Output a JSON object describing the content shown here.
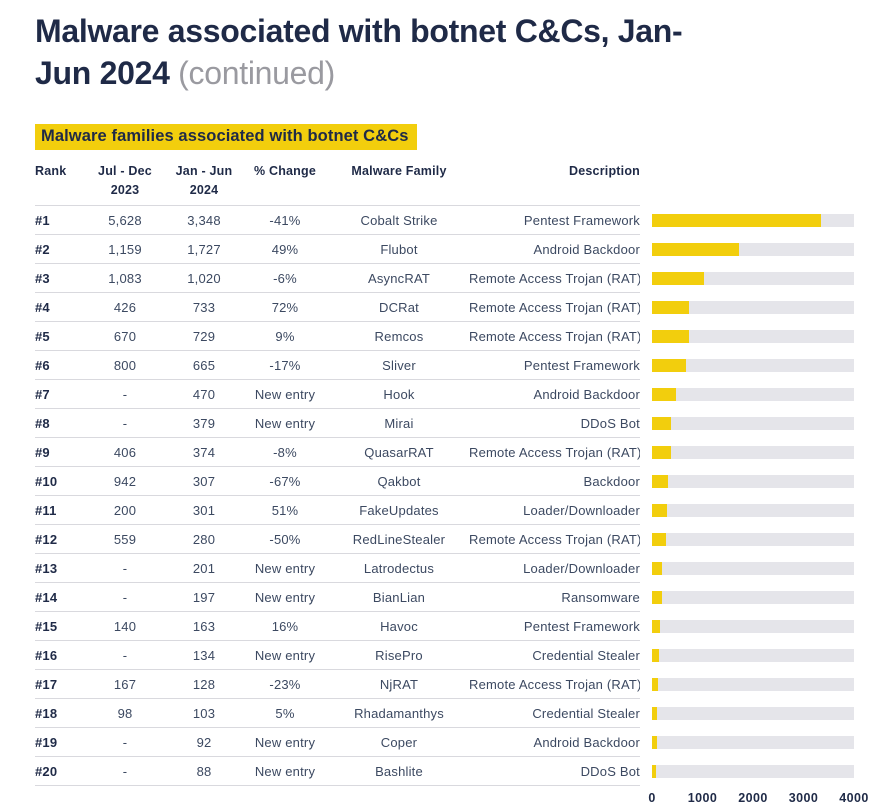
{
  "theme": {
    "accent": "#F2CE0D",
    "navy": "#1F2A47",
    "text": "#3C4961",
    "muted_gray": "#9A9AA0",
    "track": "#E5E5EA",
    "separator": "#D9D9DE"
  },
  "header": {
    "title": "Malware associated with botnet C&Cs, Jan-Jun 2024 ",
    "suffix": "(continued)"
  },
  "section": {
    "title": "Malware families associated with botnet C&Cs"
  },
  "table": {
    "headers": [
      "Rank",
      "Jul - Dec\n2023",
      "Jan - Jun\n2024",
      "% Change",
      "Malware Family",
      "Description"
    ],
    "rows": [
      {
        "rank": "#1",
        "jul_dec": "5,628",
        "jan_jun": "3,348",
        "change": "-41%",
        "family": "Cobalt Strike",
        "description": "Pentest Framework"
      },
      {
        "rank": "#2",
        "jul_dec": "1,159",
        "jan_jun": "1,727",
        "change": "49%",
        "family": "Flubot",
        "description": "Android Backdoor"
      },
      {
        "rank": "#3",
        "jul_dec": "1,083",
        "jan_jun": "1,020",
        "change": "-6%",
        "family": "AsyncRAT",
        "description": "Remote Access Trojan (RAT)"
      },
      {
        "rank": "#4",
        "jul_dec": "426",
        "jan_jun": "733",
        "change": "72%",
        "family": "DCRat",
        "description": "Remote Access Trojan (RAT)"
      },
      {
        "rank": "#5",
        "jul_dec": "670",
        "jan_jun": "729",
        "change": "9%",
        "family": "Remcos",
        "description": "Remote Access Trojan (RAT)"
      },
      {
        "rank": "#6",
        "jul_dec": "800",
        "jan_jun": "665",
        "change": "-17%",
        "family": "Sliver",
        "description": "Pentest Framework"
      },
      {
        "rank": "#7",
        "jul_dec": "-",
        "jan_jun": "470",
        "change": "New entry",
        "family": "Hook",
        "description": "Android Backdoor"
      },
      {
        "rank": "#8",
        "jul_dec": "-",
        "jan_jun": "379",
        "change": "New entry",
        "family": "Mirai",
        "description": "DDoS Bot"
      },
      {
        "rank": "#9",
        "jul_dec": "406",
        "jan_jun": "374",
        "change": "-8%",
        "family": "QuasarRAT",
        "description": "Remote Access Trojan (RAT)"
      },
      {
        "rank": "#10",
        "jul_dec": "942",
        "jan_jun": "307",
        "change": "-67%",
        "family": "Qakbot",
        "description": "Backdoor"
      },
      {
        "rank": "#11",
        "jul_dec": "200",
        "jan_jun": "301",
        "change": "51%",
        "family": "FakeUpdates",
        "description": "Loader/Downloader"
      },
      {
        "rank": "#12",
        "jul_dec": "559",
        "jan_jun": "280",
        "change": "-50%",
        "family": "RedLineStealer",
        "description": "Remote Access Trojan (RAT)"
      },
      {
        "rank": "#13",
        "jul_dec": "-",
        "jan_jun": "201",
        "change": "New entry",
        "family": "Latrodectus",
        "description": "Loader/Downloader"
      },
      {
        "rank": "#14",
        "jul_dec": "-",
        "jan_jun": "197",
        "change": "New entry",
        "family": "BianLian",
        "description": "Ransomware"
      },
      {
        "rank": "#15",
        "jul_dec": "140",
        "jan_jun": "163",
        "change": "16%",
        "family": "Havoc",
        "description": "Pentest Framework"
      },
      {
        "rank": "#16",
        "jul_dec": "-",
        "jan_jun": "134",
        "change": "New entry",
        "family": "RisePro",
        "description": "Credential Stealer"
      },
      {
        "rank": "#17",
        "jul_dec": "167",
        "jan_jun": "128",
        "change": "-23%",
        "family": "NjRAT",
        "description": "Remote Access Trojan (RAT)"
      },
      {
        "rank": "#18",
        "jul_dec": "98",
        "jan_jun": "103",
        "change": "5%",
        "family": "Rhadamanthys",
        "description": "Credential Stealer"
      },
      {
        "rank": "#19",
        "jul_dec": "-",
        "jan_jun": "92",
        "change": "New entry",
        "family": "Coper",
        "description": "Android Backdoor"
      },
      {
        "rank": "#20",
        "jul_dec": "-",
        "jan_jun": "88",
        "change": "New entry",
        "family": "Bashlite",
        "description": "DDoS Bot"
      }
    ]
  },
  "chart_data": {
    "type": "bar",
    "orientation": "horizontal",
    "title": "Malware families associated with botnet C&Cs (Jan - Jun 2024 counts)",
    "xlabel": "",
    "ylabel": "",
    "categories": [
      "Cobalt Strike",
      "Flubot",
      "AsyncRAT",
      "DCRat",
      "Remcos",
      "Sliver",
      "Hook",
      "Mirai",
      "QuasarRAT",
      "Qakbot",
      "FakeUpdates",
      "RedLineStealer",
      "Latrodectus",
      "BianLian",
      "Havoc",
      "RisePro",
      "NjRAT",
      "Rhadamanthys",
      "Coper",
      "Bashlite"
    ],
    "values": [
      3348,
      1727,
      1020,
      733,
      729,
      665,
      470,
      379,
      374,
      307,
      301,
      280,
      201,
      197,
      163,
      134,
      128,
      103,
      92,
      88
    ],
    "xlim": [
      0,
      4000
    ],
    "xticks": [
      0,
      1000,
      2000,
      3000,
      4000
    ],
    "legend": false,
    "grid": false
  }
}
